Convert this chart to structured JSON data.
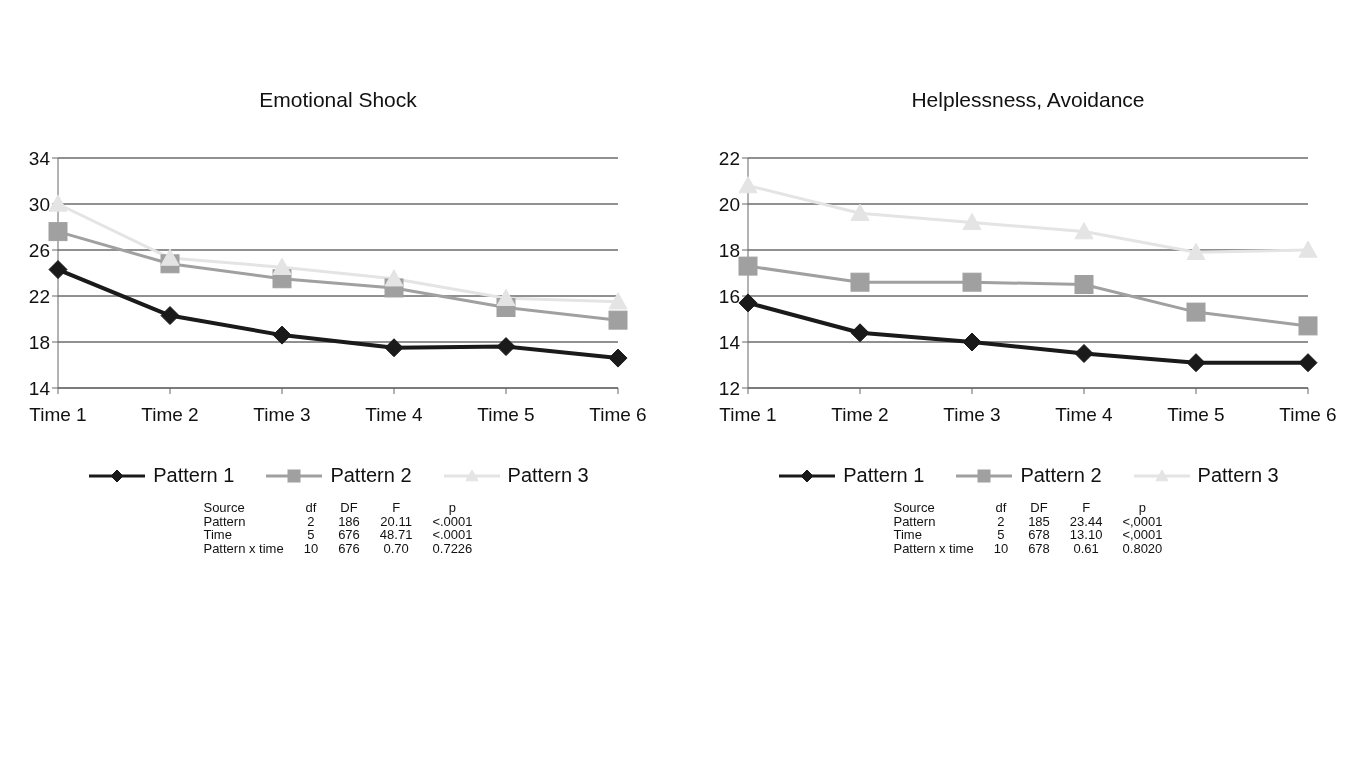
{
  "chart_data": [
    {
      "type": "line",
      "title": "Emotional Shock",
      "categories": [
        "Time 1",
        "Time 2",
        "Time 3",
        "Time 4",
        "Time 5",
        "Time 6"
      ],
      "ylim": [
        14,
        34
      ],
      "yticks": [
        14,
        18,
        22,
        26,
        30,
        34
      ],
      "grid": "y",
      "legend": "bottom",
      "series": [
        {
          "name": "Pattern 1",
          "color": "#1a1a1a",
          "marker": "diamond",
          "values": [
            24.3,
            20.3,
            18.6,
            17.5,
            17.6,
            16.6
          ]
        },
        {
          "name": "Pattern 2",
          "color": "#a0a0a0",
          "marker": "square",
          "values": [
            27.6,
            24.8,
            23.5,
            22.7,
            21.0,
            19.9
          ]
        },
        {
          "name": "Pattern 3",
          "color": "#e4e4e4",
          "marker": "triangle",
          "values": [
            30.0,
            25.3,
            24.5,
            23.5,
            21.8,
            21.5
          ]
        }
      ],
      "annotations": [
        "Source",
        "df",
        "DF",
        "F",
        "p",
        "Pattern",
        "2",
        "186",
        "20.11",
        "<.0001",
        "Time",
        "5",
        "676",
        "48.71",
        "<.0001",
        "Pattern x time",
        "10",
        "676",
        "0.70",
        "0.7226"
      ]
    },
    {
      "type": "line",
      "title": "Helplessness, Avoidance",
      "categories": [
        "Time 1",
        "Time 2",
        "Time 3",
        "Time 4",
        "Time 5",
        "Time 6"
      ],
      "ylim": [
        12,
        22
      ],
      "yticks": [
        12,
        14,
        16,
        18,
        20,
        22
      ],
      "grid": "y",
      "legend": "bottom",
      "series": [
        {
          "name": "Pattern 1",
          "color": "#1a1a1a",
          "marker": "diamond",
          "values": [
            15.7,
            14.4,
            14.0,
            13.5,
            13.1,
            13.1
          ]
        },
        {
          "name": "Pattern 2",
          "color": "#a0a0a0",
          "marker": "square",
          "values": [
            17.3,
            16.6,
            16.6,
            16.5,
            15.3,
            14.7
          ]
        },
        {
          "name": "Pattern 3",
          "color": "#e4e4e4",
          "marker": "triangle",
          "values": [
            20.8,
            19.6,
            19.2,
            18.8,
            17.9,
            18.0
          ]
        }
      ],
      "annotations": [
        "Source",
        "df",
        "DF",
        "F",
        "p",
        "Pattern",
        "2",
        "185",
        "23.44",
        "<,0001",
        "Time",
        "5",
        "678",
        "13.10",
        "<,0001",
        "Pattern x time",
        "10",
        "678",
        "0.61",
        "0.8020"
      ]
    }
  ]
}
